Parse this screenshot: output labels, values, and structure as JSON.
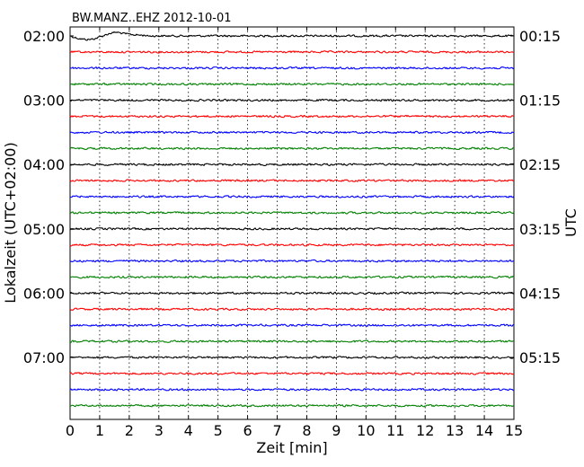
{
  "chart_data": {
    "type": "line",
    "title": "BW.MANZ..EHZ 2012-10-01",
    "xlabel": "Zeit  [min]",
    "ylabel_left": "Lokalzeit (UTC+02:00)",
    "ylabel_right": "UTC",
    "xlim": [
      0,
      15
    ],
    "x_ticks": [
      0,
      1,
      2,
      3,
      4,
      5,
      6,
      7,
      8,
      9,
      10,
      11,
      12,
      13,
      14,
      15
    ],
    "grid": "vertical dotted",
    "row_count": 24,
    "row_colors": [
      "#000000",
      "#ff0000",
      "#0000ff",
      "#008000"
    ],
    "left_tick_labels": [
      "02:00",
      "03:00",
      "04:00",
      "05:00",
      "06:00",
      "07:00"
    ],
    "right_tick_labels": [
      "00:15",
      "01:15",
      "02:15",
      "03:15",
      "04:15",
      "05:15"
    ],
    "label_every_rows": 4
  }
}
